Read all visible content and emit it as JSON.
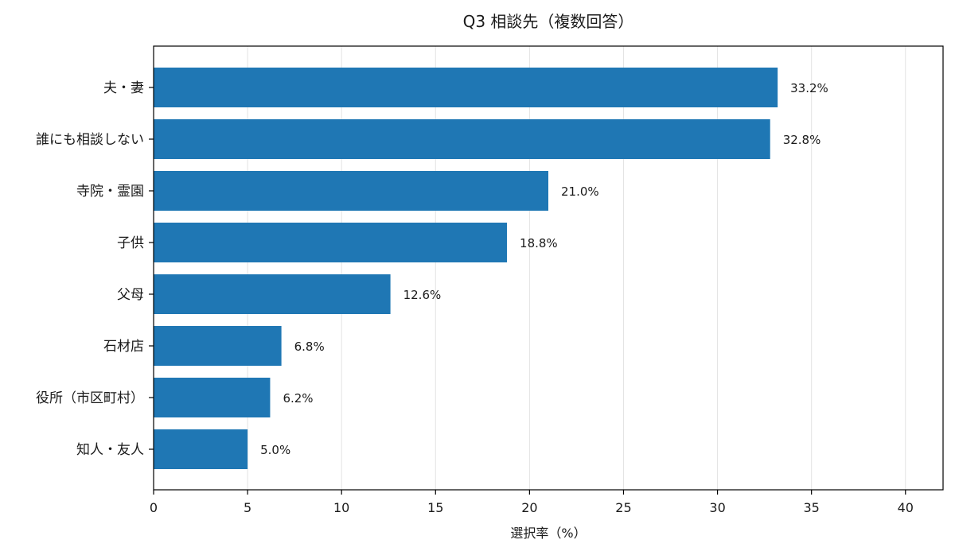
{
  "chart_data": {
    "type": "bar",
    "orientation": "horizontal",
    "title": "Q3 相談先（複数回答）",
    "xlabel": "選択率（%）",
    "ylabel": "",
    "xlim": [
      0,
      42
    ],
    "xticks": [
      0,
      5,
      10,
      15,
      20,
      25,
      30,
      35,
      40
    ],
    "grid": "x",
    "legend": "none",
    "categories": [
      "夫・妻",
      "誰にも相談しない",
      "寺院・霊園",
      "子供",
      "父母",
      "石材店",
      "役所（市区町村）",
      "知人・友人"
    ],
    "values": [
      33.2,
      32.8,
      21.0,
      18.8,
      12.6,
      6.8,
      6.2,
      5.0
    ],
    "value_labels": [
      "33.2%",
      "32.8%",
      "21.0%",
      "18.8%",
      "12.6%",
      "6.8%",
      "6.2%",
      "5.0%"
    ],
    "bar_color": "#1f77b4"
  }
}
